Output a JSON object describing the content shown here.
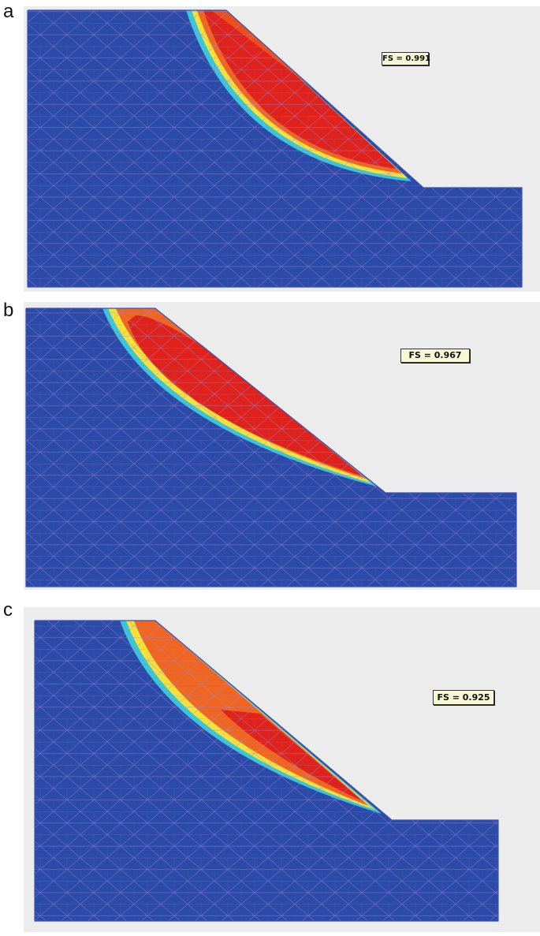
{
  "panels": [
    {
      "label": "a",
      "fs_label": "FS = 0.991"
    },
    {
      "label": "b",
      "fs_label": "FS = 0.967"
    },
    {
      "label": "c",
      "fs_label": "FS = 0.925"
    }
  ],
  "colors": {
    "soil": "#2c4aa8",
    "mesh": "#9a8ad8",
    "failure_core": "#e0221c",
    "failure_mid": "#f0651f",
    "failure_edge_yellow": "#f4e23a",
    "failure_edge_cyan": "#38c6d8",
    "background": "#ececec",
    "label_box": "#f9f8d6"
  }
}
